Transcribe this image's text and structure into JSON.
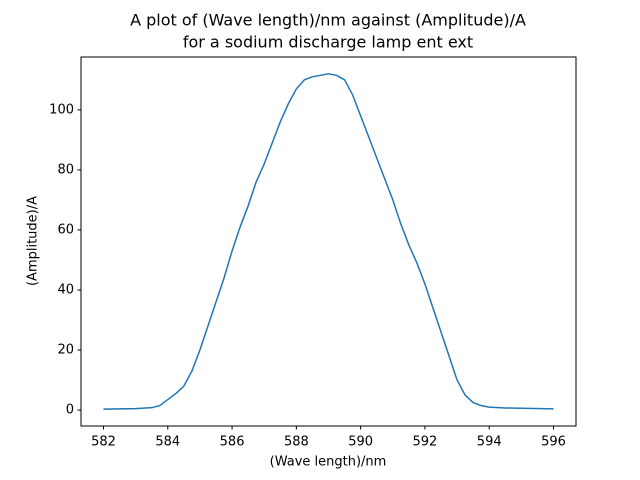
{
  "chart_data": {
    "type": "line",
    "title": [
      "A plot of (Wave length)/nm against (Amplitude)/A",
      "for a sodium discharge lamp ent ext"
    ],
    "xlabel": "(Wave length)/nm",
    "ylabel": "(Amplitude)/A",
    "x": [
      582,
      583,
      583.5,
      583.75,
      584,
      584.25,
      584.5,
      584.75,
      585,
      585.25,
      585.5,
      585.75,
      586,
      586.25,
      586.5,
      586.75,
      587,
      587.25,
      587.5,
      587.75,
      588,
      588.25,
      588.5,
      588.75,
      589,
      589.25,
      589.5,
      589.75,
      590,
      590.25,
      590.5,
      590.75,
      591,
      591.25,
      591.5,
      591.75,
      592,
      592.25,
      592.5,
      592.75,
      593,
      593.25,
      593.5,
      593.75,
      594,
      594.5,
      595,
      596
    ],
    "series": [
      {
        "name": "Amplitude",
        "color": "#1f77b4",
        "values": [
          0.3,
          0.5,
          0.8,
          1.5,
          3.5,
          5.5,
          8,
          13,
          20,
          28,
          36,
          44,
          53,
          61,
          68,
          76,
          82,
          89,
          96,
          102,
          107,
          110,
          111,
          111.5,
          112,
          111.5,
          110,
          105,
          98,
          91,
          84,
          77,
          70,
          62,
          55,
          49,
          42,
          34,
          26,
          18,
          10,
          5,
          2.5,
          1.5,
          1,
          0.7,
          0.6,
          0.4
        ]
      }
    ],
    "xlim": [
      581.3,
      596.7
    ],
    "ylim": [
      -5.3,
      117.6
    ],
    "xticks": [
      582,
      584,
      586,
      588,
      590,
      592,
      594,
      596
    ],
    "yticks": [
      0,
      20,
      40,
      60,
      80,
      100
    ],
    "grid": false
  }
}
